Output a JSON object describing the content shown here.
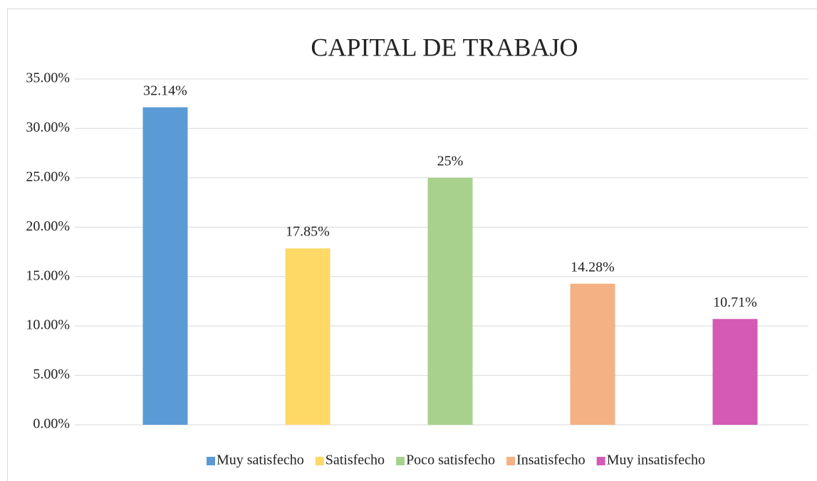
{
  "chart_data": {
    "type": "bar",
    "title": "CAPITAL DE TRABAJO",
    "categories": [
      "Muy satisfecho",
      "Satisfecho",
      "Poco satisfecho",
      "Insatisfecho",
      "Muy insatisfecho"
    ],
    "values": [
      32.14,
      17.85,
      25,
      14.28,
      10.71
    ],
    "value_labels": [
      "32.14%",
      "17.85%",
      "25%",
      "14.28%",
      "10.71%"
    ],
    "colors": [
      "#5b9bd5",
      "#ffd966",
      "#a9d18e",
      "#f4b183",
      "#d45ab5"
    ],
    "ylim": [
      0,
      35
    ],
    "yticks": [
      {
        "value": 0,
        "label": "0.00%"
      },
      {
        "value": 5,
        "label": "5.00%"
      },
      {
        "value": 10,
        "label": "10.00%"
      },
      {
        "value": 15,
        "label": "15.00%"
      },
      {
        "value": 20,
        "label": "20.00%"
      },
      {
        "value": 25,
        "label": "25.00%"
      },
      {
        "value": 30,
        "label": "30.00%"
      },
      {
        "value": 35,
        "label": "35.00%"
      }
    ],
    "grid": true,
    "legend": "bottom"
  }
}
